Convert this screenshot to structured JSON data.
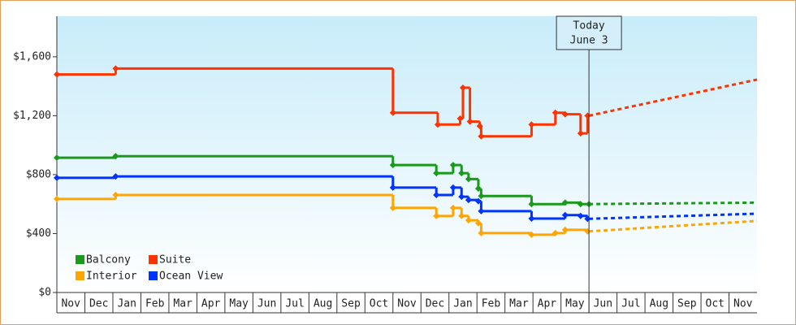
{
  "chart_data": {
    "type": "step-line",
    "xlim": [
      0,
      25
    ],
    "ylim": [
      0,
      1875
    ],
    "xticks": [
      {
        "value": 0,
        "label": "Nov"
      },
      {
        "value": 1,
        "label": "Dec"
      },
      {
        "value": 2,
        "label": "Jan"
      },
      {
        "value": 3,
        "label": "Feb"
      },
      {
        "value": 4,
        "label": "Mar"
      },
      {
        "value": 5,
        "label": "Apr"
      },
      {
        "value": 6,
        "label": "May"
      },
      {
        "value": 7,
        "label": "Jun"
      },
      {
        "value": 8,
        "label": "Jul"
      },
      {
        "value": 9,
        "label": "Aug"
      },
      {
        "value": 10,
        "label": "Sep"
      },
      {
        "value": 11,
        "label": "Oct"
      },
      {
        "value": 12,
        "label": "Nov"
      },
      {
        "value": 13,
        "label": "Dec"
      },
      {
        "value": 14,
        "label": "Jan"
      },
      {
        "value": 15,
        "label": "Feb"
      },
      {
        "value": 16,
        "label": "Mar"
      },
      {
        "value": 17,
        "label": "Apr"
      },
      {
        "value": 18,
        "label": "May"
      },
      {
        "value": 19,
        "label": "Jun"
      },
      {
        "value": 20,
        "label": "Jul"
      },
      {
        "value": 21,
        "label": "Aug"
      },
      {
        "value": 22,
        "label": "Sep"
      },
      {
        "value": 23,
        "label": "Oct"
      },
      {
        "value": 24,
        "label": "Nov"
      }
    ],
    "yticks": [
      {
        "value": 0,
        "label": "$0"
      },
      {
        "value": 400,
        "label": "$400"
      },
      {
        "value": 800,
        "label": "$800"
      },
      {
        "value": 1200,
        "label": "$1,200"
      },
      {
        "value": 1600,
        "label": "$1,600"
      }
    ],
    "annotation": {
      "x": 19.0,
      "lines": [
        "Today",
        "June 3"
      ]
    },
    "series": [
      {
        "name": "Balcony",
        "color": "#1a9a1a",
        "x": [
          0,
          2.1,
          12.0,
          13.55,
          14.15,
          14.45,
          14.7,
          15.05,
          15.15,
          16.95,
          18.15,
          18.7,
          19.0
        ],
        "values": [
          915,
          925,
          865,
          810,
          865,
          810,
          770,
          705,
          655,
          600,
          610,
          600,
          600
        ],
        "projection": {
          "x": [
            19.0,
            25
          ],
          "values": [
            600,
            610
          ]
        }
      },
      {
        "name": "Suite",
        "color": "#ff3300",
        "x": [
          0,
          2.1,
          12.0,
          13.6,
          14.4,
          14.5,
          14.75,
          15.1,
          15.15,
          16.95,
          17.8,
          18.15,
          18.7,
          18.95
        ],
        "values": [
          1480,
          1520,
          1220,
          1140,
          1180,
          1390,
          1160,
          1130,
          1060,
          1140,
          1220,
          1210,
          1080,
          1200
        ],
        "projection": {
          "x": [
            19.0,
            25
          ],
          "values": [
            1200,
            1445
          ]
        }
      },
      {
        "name": "Interior",
        "color": "#ffa500",
        "x": [
          0,
          2.1,
          12.0,
          13.55,
          14.15,
          14.45,
          14.7,
          15.05,
          15.15,
          16.95,
          17.8,
          18.15,
          18.95
        ],
        "values": [
          635,
          662,
          574,
          519,
          574,
          520,
          490,
          470,
          403,
          392,
          403,
          425,
          415
        ],
        "projection": {
          "x": [
            19.0,
            25
          ],
          "values": [
            415,
            486
          ]
        }
      },
      {
        "name": "Ocean View",
        "color": "#0033ff",
        "x": [
          0,
          2.1,
          12.0,
          13.55,
          14.15,
          14.45,
          14.7,
          15.05,
          15.15,
          16.95,
          18.15,
          18.7,
          18.95
        ],
        "values": [
          778,
          788,
          712,
          662,
          712,
          650,
          628,
          620,
          552,
          502,
          525,
          520,
          500
        ],
        "projection": {
          "x": [
            19.0,
            25
          ],
          "values": [
            500,
            535
          ]
        }
      }
    ]
  }
}
